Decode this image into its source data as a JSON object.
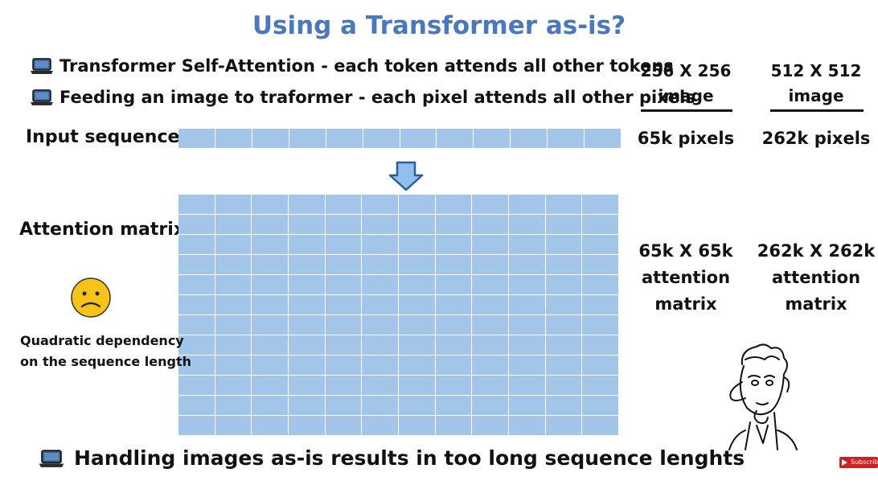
{
  "title": "Using a Transformer as-is?",
  "bullets": [
    "Transformer Self-Attention - each token attends all other tokens",
    "Feeding an image to traformer - each pixel attends all other pixels"
  ],
  "labels": {
    "input_sequence": "Input sequence",
    "attention_matrix": "Attention matrix",
    "quadratic_line1": "Quadratic dependency",
    "quadratic_line2": "on the sequence length"
  },
  "columns": [
    {
      "header_line1": "256 X 256",
      "header_line2": "image",
      "pixels": "65k pixels",
      "matrix_line1": "65k X 65k",
      "matrix_line2": "attention",
      "matrix_line3": "matrix"
    },
    {
      "header_line1": "512 X 512",
      "header_line2": "image",
      "pixels": "262k pixels",
      "matrix_line1": "262k X 262k",
      "matrix_line2": "attention",
      "matrix_line3": "matrix"
    }
  ],
  "bottom_bullet": "Handling images as-is results in too long sequence lenghts",
  "subscribe_label": "Subscribe",
  "colors": {
    "title": "#4a78bd",
    "grid_fill": "#a3c5ea",
    "arrow_fill": "#8fc0ee",
    "arrow_stroke": "#2c5f99",
    "sad_face": "#f6c318"
  },
  "icons": [
    "laptop-icon",
    "down-arrow-icon",
    "sad-face-icon",
    "thinking-man-illustration",
    "youtube-subscribe-icon"
  ]
}
